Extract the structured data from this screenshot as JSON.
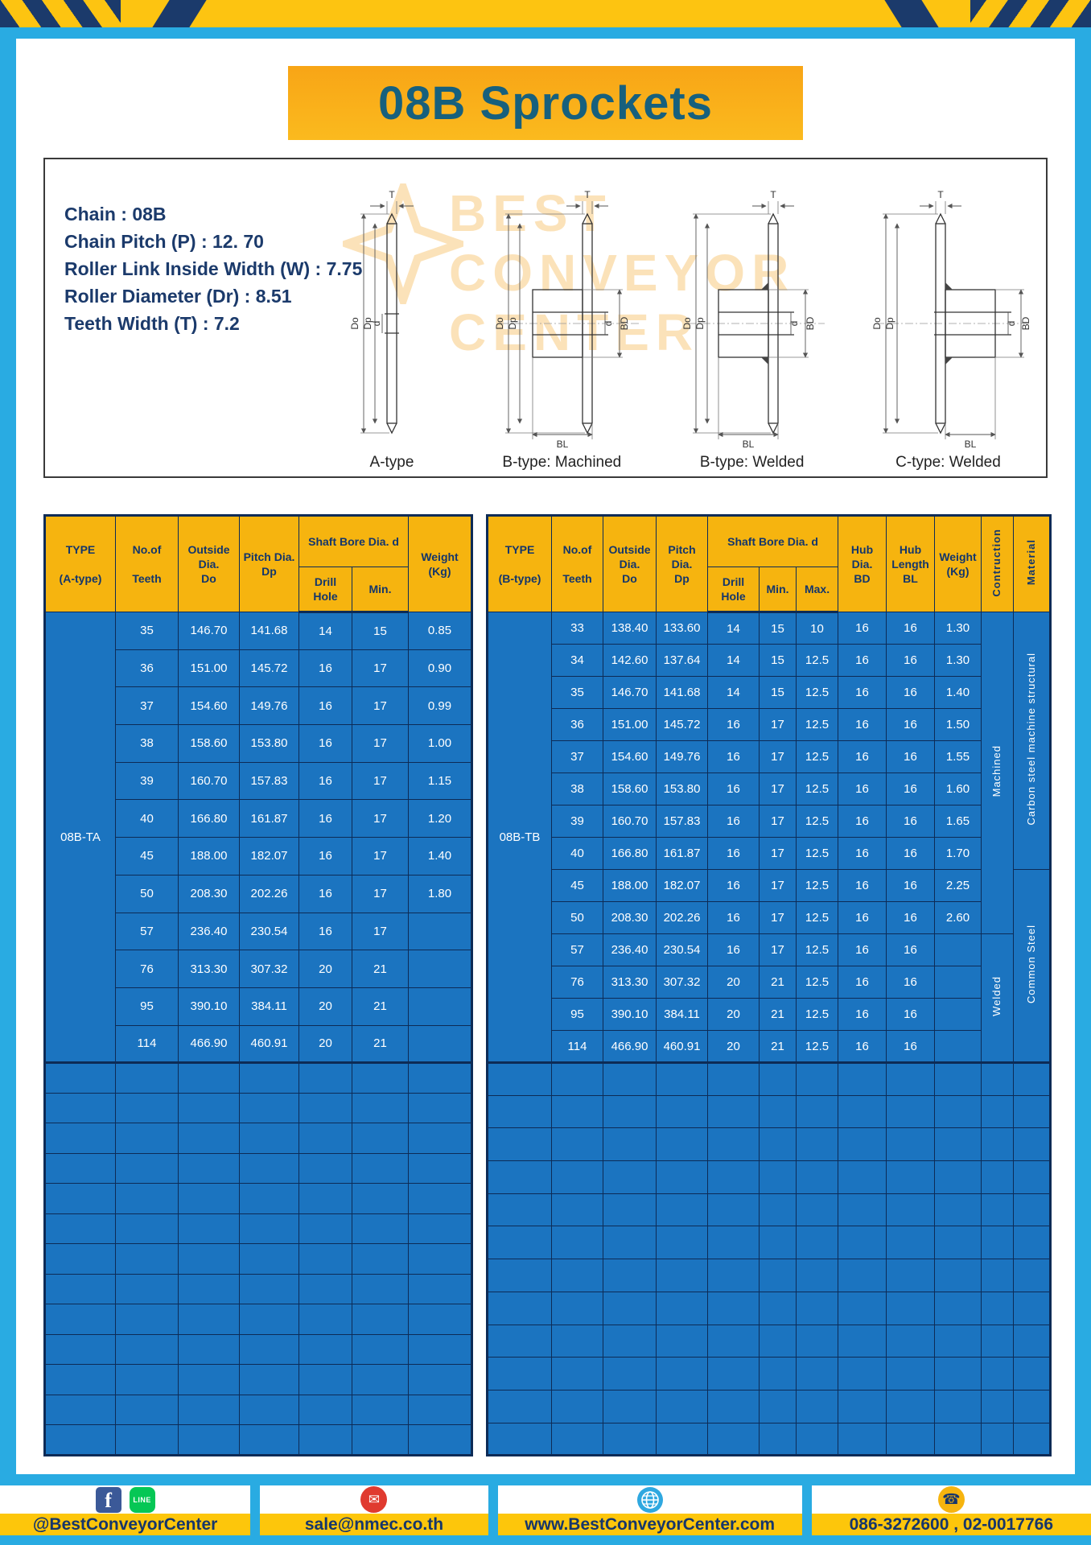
{
  "title": "08B Sprockets",
  "specs": {
    "lines": [
      "Chain : 08B",
      "Chain Pitch (P) : 12. 70",
      "Roller Link Inside Width (W) : 7.75",
      "Roller Diameter (Dr) : 8.51",
      "Teeth Width (T) : 7.2"
    ]
  },
  "watermark": {
    "lines": [
      "BEST",
      "CONVEYOR",
      "CENTER"
    ]
  },
  "drawings": {
    "labels": [
      "A-type",
      "B-type: Machined",
      "B-type: Welded",
      "C-type: Welded"
    ],
    "dims": {
      "t": "T",
      "do": "Do",
      "dp": "Dp",
      "d": "d",
      "bd": "BD",
      "bl": "BL"
    }
  },
  "table_a": {
    "type_value": "08B-TA",
    "headers": {
      "type": "TYPE\n\n(A-type)",
      "teeth": "No.of\n\nTeeth",
      "outside": "Outside\nDia.\nDo",
      "pitch": "Pitch Dia.\nDp",
      "shaft_bore": "Shaft Bore Dia. d",
      "drill": "Drill Hole",
      "min": "Min.",
      "weight": "Weight\n(Kg)"
    },
    "rows": [
      [
        "35",
        "146.70",
        "141.68",
        "14",
        "15",
        "0.85"
      ],
      [
        "36",
        "151.00",
        "145.72",
        "16",
        "17",
        "0.90"
      ],
      [
        "37",
        "154.60",
        "149.76",
        "16",
        "17",
        "0.99"
      ],
      [
        "38",
        "158.60",
        "153.80",
        "16",
        "17",
        "1.00"
      ],
      [
        "39",
        "160.70",
        "157.83",
        "16",
        "17",
        "1.15"
      ],
      [
        "40",
        "166.80",
        "161.87",
        "16",
        "17",
        "1.20"
      ],
      [
        "45",
        "188.00",
        "182.07",
        "16",
        "17",
        "1.40"
      ],
      [
        "50",
        "208.30",
        "202.26",
        "16",
        "17",
        "1.80"
      ],
      [
        "57",
        "236.40",
        "230.54",
        "16",
        "17",
        ""
      ],
      [
        "76",
        "313.30",
        "307.32",
        "20",
        "21",
        ""
      ],
      [
        "95",
        "390.10",
        "384.11",
        "20",
        "21",
        ""
      ],
      [
        "114",
        "466.90",
        "460.91",
        "20",
        "21",
        ""
      ]
    ],
    "empty_rows": 13
  },
  "table_b": {
    "type_value": "08B-TB",
    "headers": {
      "type": "TYPE\n\n(B-type)",
      "teeth": "No.of\n\nTeeth",
      "outside": "Outside\nDia.\nDo",
      "pitch": "Pitch Dia.\nDp",
      "shaft_bore": "Shaft Bore Dia. d",
      "drill": "Drill Hole",
      "min": "Min.",
      "max": "Max.",
      "hub_dia": "Hub Dia.\nBD",
      "hub_length": "Hub\nLength\nBL",
      "weight": "Weight\n(Kg)",
      "construction": "Contruction",
      "material": "Material"
    },
    "rows": [
      [
        "33",
        "138.40",
        "133.60",
        "14",
        "15",
        "10",
        "16",
        "16",
        "1.30"
      ],
      [
        "34",
        "142.60",
        "137.64",
        "14",
        "15",
        "12.5",
        "16",
        "16",
        "1.30"
      ],
      [
        "35",
        "146.70",
        "141.68",
        "14",
        "15",
        "12.5",
        "16",
        "16",
        "1.40"
      ],
      [
        "36",
        "151.00",
        "145.72",
        "16",
        "17",
        "12.5",
        "16",
        "16",
        "1.50"
      ],
      [
        "37",
        "154.60",
        "149.76",
        "16",
        "17",
        "12.5",
        "16",
        "16",
        "1.55"
      ],
      [
        "38",
        "158.60",
        "153.80",
        "16",
        "17",
        "12.5",
        "16",
        "16",
        "1.60"
      ],
      [
        "39",
        "160.70",
        "157.83",
        "16",
        "17",
        "12.5",
        "16",
        "16",
        "1.65"
      ],
      [
        "40",
        "166.80",
        "161.87",
        "16",
        "17",
        "12.5",
        "16",
        "16",
        "1.70"
      ],
      [
        "45",
        "188.00",
        "182.07",
        "16",
        "17",
        "12.5",
        "16",
        "16",
        "2.25"
      ],
      [
        "50",
        "208.30",
        "202.26",
        "16",
        "17",
        "12.5",
        "16",
        "16",
        "2.60"
      ],
      [
        "57",
        "236.40",
        "230.54",
        "16",
        "17",
        "12.5",
        "16",
        "16",
        ""
      ],
      [
        "76",
        "313.30",
        "307.32",
        "20",
        "21",
        "12.5",
        "16",
        "16",
        ""
      ],
      [
        "95",
        "390.10",
        "384.11",
        "20",
        "21",
        "12.5",
        "16",
        "16",
        ""
      ],
      [
        "114",
        "466.90",
        "460.91",
        "20",
        "21",
        "12.5",
        "16",
        "16",
        ""
      ]
    ],
    "construction": [
      {
        "label": "Machined",
        "start": 0,
        "rows": 10
      },
      {
        "label": "Welded",
        "start": 10,
        "rows": 4
      }
    ],
    "material": [
      {
        "label": "Carbon steel machine structural",
        "start": 0,
        "rows": 8
      },
      {
        "label": "Common Steel",
        "start": 8,
        "rows": 6
      }
    ],
    "empty_rows": 12
  },
  "footer": {
    "facebook_label": "f",
    "line_label": "LINE",
    "social": "@BestConveyorCenter",
    "email": "sale@nmec.co.th",
    "website": "www.BestConveyorCenter.com",
    "phone": "086-3272600 , 02-0017766",
    "mail_glyph": "✉",
    "phone_glyph": "☎"
  }
}
